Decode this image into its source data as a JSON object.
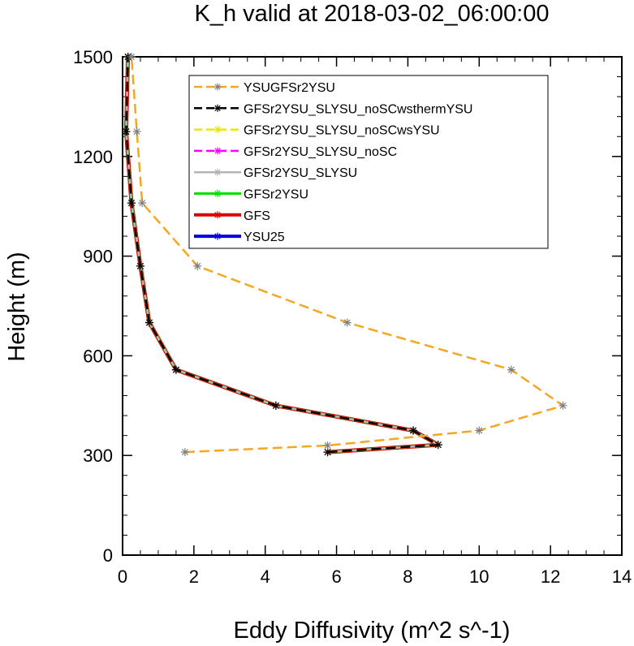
{
  "chart_data": {
    "type": "line",
    "title": "K_h valid at 2018-03-02_06:00:00",
    "xlabel": "Eddy Diffusivity (m^2 s^-1)",
    "ylabel": "Height (m)",
    "xlim": [
      0,
      14
    ],
    "ylim": [
      0,
      1500
    ],
    "xticks": [
      0,
      2,
      4,
      6,
      8,
      10,
      12,
      14
    ],
    "yticks": [
      0,
      300,
      600,
      900,
      1200,
      1500
    ],
    "legend_position": "top-right",
    "series": [
      {
        "name": "YSUGFSr2YSU",
        "color": "#f5a623",
        "dash": "dashed",
        "x": [
          1.75,
          5.75,
          10.0,
          12.35,
          10.9,
          6.3,
          2.1,
          0.55,
          0.4,
          0.25
        ],
        "y": [
          310,
          330,
          375,
          450,
          558,
          700,
          870,
          1060,
          1275,
          1500
        ]
      },
      {
        "name": "GFSr2YSU_SLYSU_noSCwsthermYSU",
        "color": "#000000",
        "dash": "dashed",
        "x": [
          5.75,
          8.85,
          8.15,
          4.3,
          1.5,
          0.75,
          0.5,
          0.25,
          0.1,
          0.15
        ],
        "y": [
          310,
          332,
          375,
          450,
          558,
          700,
          870,
          1060,
          1275,
          1500
        ]
      },
      {
        "name": "GFSr2YSU_SLYSU_noSCwsYSU",
        "color": "#e8e800",
        "dash": "dashed",
        "x": [
          5.75,
          8.85,
          8.15,
          4.3,
          1.5,
          0.75,
          0.5,
          0.25,
          0.1,
          0.15
        ],
        "y": [
          310,
          332,
          375,
          450,
          558,
          700,
          870,
          1060,
          1275,
          1500
        ]
      },
      {
        "name": "GFSr2YSU_SLYSU_noSC",
        "color": "#ff00ff",
        "dash": "dashed",
        "x": [
          5.75,
          8.85,
          8.15,
          4.3,
          1.5,
          0.75,
          0.5,
          0.25,
          0.1,
          0.15
        ],
        "y": [
          310,
          332,
          375,
          450,
          558,
          700,
          870,
          1060,
          1275,
          1500
        ]
      },
      {
        "name": "GFSr2YSU_SLYSU",
        "color": "#b4b4b4",
        "dash": "solid",
        "x": [
          5.75,
          8.85,
          8.15,
          4.3,
          1.5,
          0.75,
          0.5,
          0.25,
          0.1,
          0.15
        ],
        "y": [
          310,
          332,
          375,
          450,
          558,
          700,
          870,
          1060,
          1275,
          1500
        ]
      },
      {
        "name": "GFSr2YSU",
        "color": "#00e000",
        "dash": "solid",
        "x": [
          5.75,
          8.85,
          8.15,
          4.3,
          1.5,
          0.75,
          0.5,
          0.25,
          0.1,
          0.15
        ],
        "y": [
          310,
          332,
          375,
          450,
          558,
          700,
          870,
          1060,
          1275,
          1500
        ]
      },
      {
        "name": "GFS",
        "color": "#e00000",
        "dash": "solid",
        "x": [
          5.75,
          8.85,
          8.15,
          4.3,
          1.5,
          0.75,
          0.5,
          0.25,
          0.1,
          0.15
        ],
        "y": [
          310,
          332,
          375,
          450,
          558,
          700,
          870,
          1060,
          1275,
          1500
        ]
      },
      {
        "name": "YSU25",
        "color": "#0000e0",
        "dash": "solid",
        "x": [
          5.75,
          8.85,
          8.15,
          4.3,
          1.5,
          0.75,
          0.5,
          0.25,
          0.1,
          0.15
        ],
        "y": [
          310,
          332,
          375,
          450,
          558,
          700,
          870,
          1060,
          1275,
          1500
        ]
      }
    ]
  }
}
